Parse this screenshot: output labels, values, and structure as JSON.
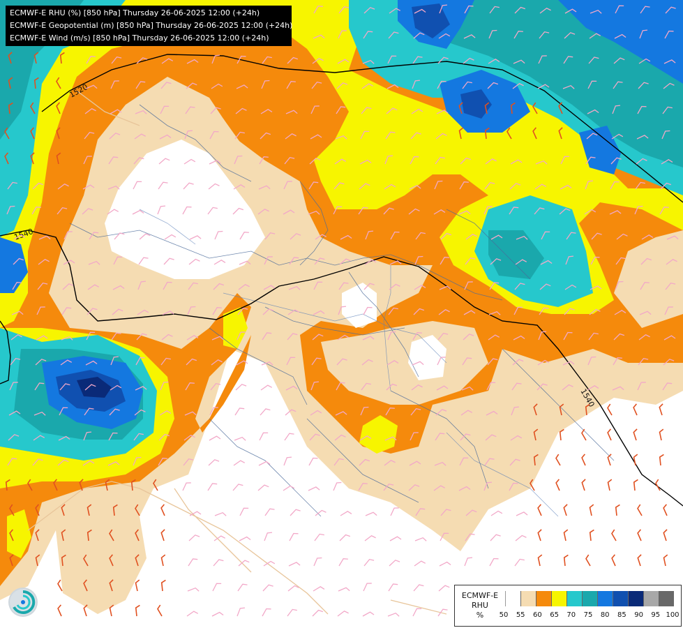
{
  "header": {
    "lines": [
      "ECMWF-E RHU (%) [850 hPa] Thursday 26-06-2025 12:00 (+24h)",
      "ECMWF-E Geopotential (m) [850 hPa] Thursday 26-06-2025 12:00 (+24h)",
      "ECMWF-E Wind (m/s) [850 hPa] Thursday 26-06-2025 12:00 (+24h)"
    ]
  },
  "contours": {
    "labels": [
      "1520",
      "1540",
      "1540"
    ]
  },
  "legend": {
    "model": "ECMWF-E",
    "variable": "RHU",
    "unit": "%",
    "ticks": [
      "50",
      "55",
      "60",
      "65",
      "70",
      "75",
      "80",
      "85",
      "90",
      "95",
      "100"
    ],
    "colors": [
      "#ffffff",
      "#f5dcb2",
      "#f58a0c",
      "#f7f500",
      "#26c8cc",
      "#1aa8ac",
      "#1478e0",
      "#1050b0",
      "#0a2a78",
      "#a8a8a8",
      "#686868"
    ]
  },
  "colors": {
    "land": "#ffffff",
    "borders": "#4a6a9a",
    "coast": "#e8c59a",
    "geopotential": "#000000",
    "wind_light": "#f2a8c8",
    "wind_strong": "#e05020"
  },
  "icons": {
    "logo": "ecmwf-logo-icon"
  }
}
